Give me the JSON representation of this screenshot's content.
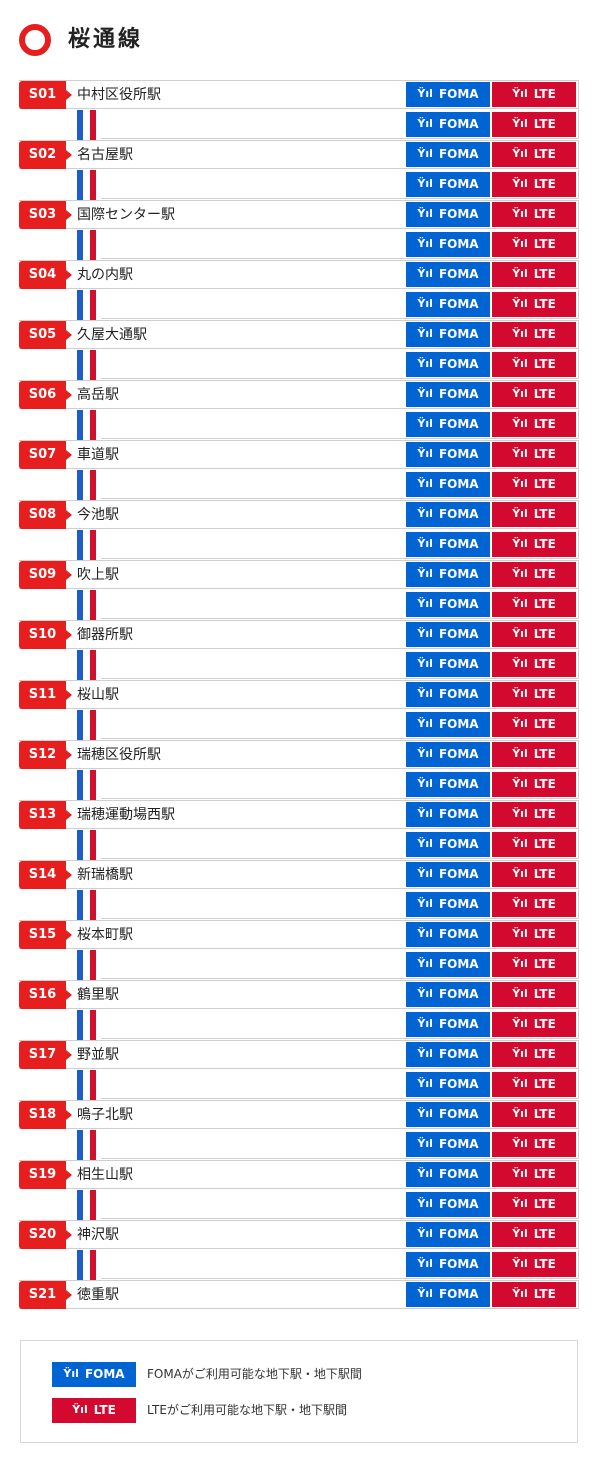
{
  "line": {
    "title": "桜通線",
    "icon": "line-circle-icon",
    "color": "#e61e1e"
  },
  "badges": {
    "foma": "FOMA",
    "lte": "LTE",
    "signal_icon": "antenna-signal-icon"
  },
  "colors": {
    "foma": "#0064d2",
    "lte": "#d3092f",
    "track_blue": "#1c5dc9",
    "track_red": "#d0102e"
  },
  "stations": [
    {
      "code": "S01",
      "name": "中村区役所駅"
    },
    {
      "code": "S02",
      "name": "名古屋駅"
    },
    {
      "code": "S03",
      "name": "国際センター駅"
    },
    {
      "code": "S04",
      "name": "丸の内駅"
    },
    {
      "code": "S05",
      "name": "久屋大通駅"
    },
    {
      "code": "S06",
      "name": "高岳駅"
    },
    {
      "code": "S07",
      "name": "車道駅"
    },
    {
      "code": "S08",
      "name": "今池駅"
    },
    {
      "code": "S09",
      "name": "吹上駅"
    },
    {
      "code": "S10",
      "name": "御器所駅"
    },
    {
      "code": "S11",
      "name": "桜山駅"
    },
    {
      "code": "S12",
      "name": "瑞穂区役所駅"
    },
    {
      "code": "S13",
      "name": "瑞穂運動場西駅"
    },
    {
      "code": "S14",
      "name": "新瑞橋駅"
    },
    {
      "code": "S15",
      "name": "桜本町駅"
    },
    {
      "code": "S16",
      "name": "鶴里駅"
    },
    {
      "code": "S17",
      "name": "野並駅"
    },
    {
      "code": "S18",
      "name": "鳴子北駅"
    },
    {
      "code": "S19",
      "name": "相生山駅"
    },
    {
      "code": "S20",
      "name": "神沢駅"
    },
    {
      "code": "S21",
      "name": "徳重駅"
    }
  ],
  "legend": {
    "foma_label": "FOMA",
    "foma_text": "FOMAがご利用可能な地下駅・地下駅間",
    "lte_label": "LTE",
    "lte_text": "LTEがご利用可能な地下駅・地下駅間"
  }
}
